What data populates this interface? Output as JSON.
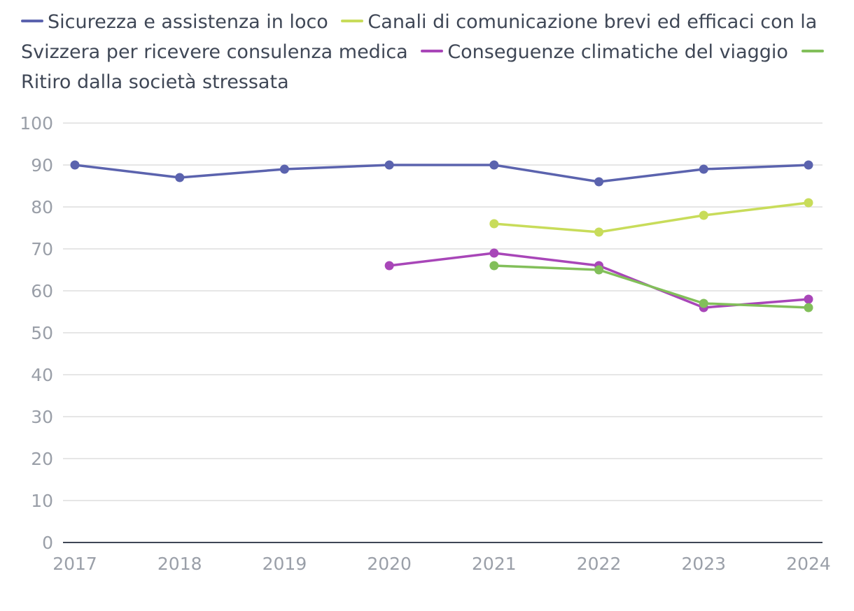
{
  "chart_data": {
    "type": "line",
    "title": "",
    "xlabel": "",
    "ylabel": "",
    "categories": [
      "2017",
      "2018",
      "2019",
      "2020",
      "2021",
      "2022",
      "2023",
      "2024"
    ],
    "ylim": [
      0,
      100
    ],
    "yticks": [
      0,
      10,
      20,
      30,
      40,
      50,
      60,
      70,
      80,
      90,
      100
    ],
    "grid": true,
    "legend_position": "top",
    "series": [
      {
        "name": "Sicurezza e assistenza in loco",
        "color": "#5b63ae",
        "values": [
          90,
          87,
          89,
          90,
          90,
          86,
          89,
          90
        ]
      },
      {
        "name": "Canali di comunicazione brevi ed efficaci con la Svizzera per ricevere consulenza medica",
        "color": "#c8dc5a",
        "values": [
          null,
          null,
          null,
          null,
          76,
          74,
          78,
          81
        ]
      },
      {
        "name": "Conseguenze climatiche del viaggio",
        "color": "#a846b8",
        "values": [
          null,
          null,
          null,
          66,
          69,
          66,
          56,
          58
        ]
      },
      {
        "name": "Ritiro dalla società stressata",
        "color": "#82bf5a",
        "values": [
          null,
          null,
          null,
          null,
          66,
          65,
          57,
          56
        ]
      }
    ]
  }
}
